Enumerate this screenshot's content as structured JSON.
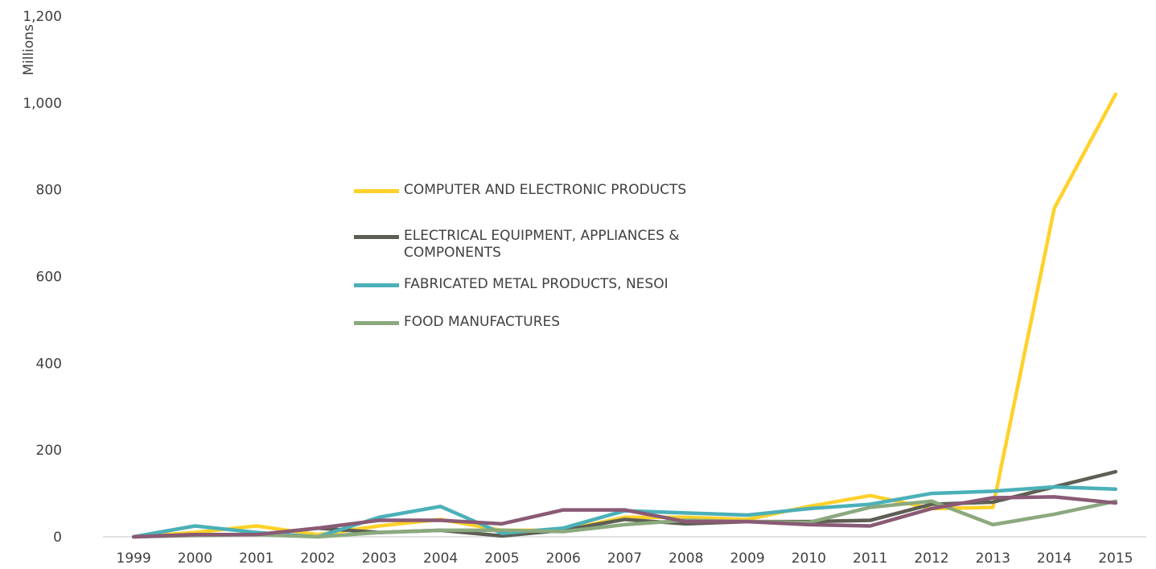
{
  "chart_data": {
    "type": "line",
    "ylabel": "Millions",
    "ylim": [
      0,
      1200
    ],
    "yticks": [
      0,
      200,
      400,
      600,
      800,
      1000,
      1200
    ],
    "ytick_labels": [
      "0",
      "200",
      "400",
      "600",
      "800",
      "1,000",
      "1,200"
    ],
    "x": [
      "1999",
      "2000",
      "2001",
      "2002",
      "2003",
      "2004",
      "2005",
      "2006",
      "2007",
      "2008",
      "2009",
      "2010",
      "2011",
      "2012",
      "2013",
      "2014",
      "2015"
    ],
    "grid": false,
    "legend_position": "center",
    "series": [
      {
        "name": "COMPUTER AND ELECTRONIC PRODUCTS",
        "color": "#FFD12A",
        "values": [
          0,
          10,
          25,
          5,
          25,
          40,
          15,
          15,
          45,
          45,
          40,
          70,
          95,
          65,
          68,
          757,
          1020
        ]
      },
      {
        "name": "ELECTRICAL EQUIPMENT, APPLIANCES & COMPONENTS",
        "color": "#5E5E54",
        "values": [
          0,
          5,
          5,
          20,
          10,
          15,
          2,
          15,
          40,
          30,
          35,
          35,
          38,
          75,
          80,
          115,
          150
        ]
      },
      {
        "name": "FABRICATED METAL PRODUCTS, NESOI",
        "color": "#4BB0B8",
        "values": [
          0,
          25,
          10,
          0,
          45,
          70,
          8,
          20,
          60,
          55,
          50,
          65,
          75,
          100,
          105,
          115,
          110
        ]
      },
      {
        "name": "FOOD MANUFACTURES",
        "color": "#8BA97E",
        "values": [
          0,
          3,
          5,
          0,
          10,
          15,
          15,
          12,
          28,
          38,
          35,
          33,
          68,
          82,
          28,
          52,
          82
        ]
      },
      {
        "name": "",
        "color": "#8A5A75",
        "values": [
          0,
          5,
          5,
          20,
          38,
          38,
          30,
          62,
          62,
          35,
          35,
          28,
          25,
          65,
          90,
          92,
          78
        ]
      }
    ]
  }
}
